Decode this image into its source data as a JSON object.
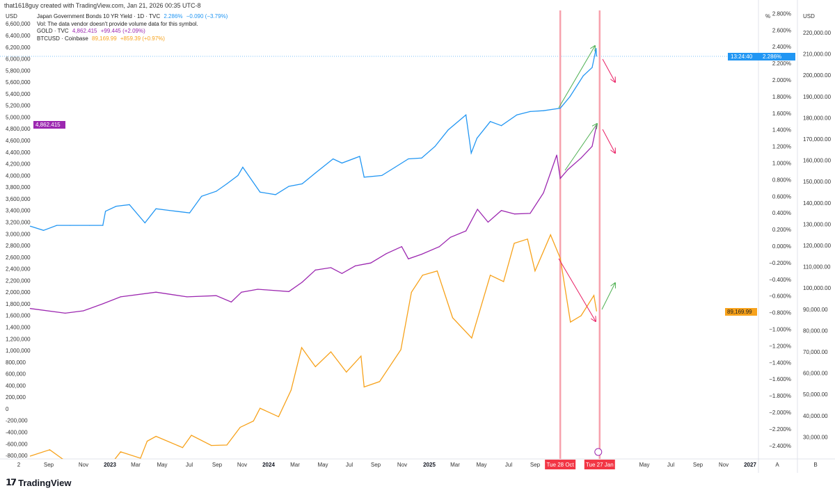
{
  "credit": "that1618guy created with TradingView.com, Jan 21, 2026 00:35 UTC-8",
  "legend": {
    "jgb": {
      "name": "Japan Government Bonds 10 YR Yield · 1D · TVC",
      "value": "2.286%",
      "change": "−0.090 (−3.79%)",
      "color": "#2196f3"
    },
    "vol": "Vol: The data vendor doesn't provide volume data for this symbol.",
    "gold": {
      "name": "GOLD · TVC",
      "value": "4,862.415",
      "change": "+99.445 (+2.09%)",
      "color": "#9c27b0"
    },
    "btc": {
      "name": "BTCUSD · Coinbase",
      "value": "89,169.99",
      "change": "+859.39 (+0.97%)",
      "color": "#f7a21b"
    }
  },
  "logo": "TradingView",
  "chart_data": {
    "type": "line",
    "left_axis": {
      "unit": "USD",
      "ticks": [
        "6,600,000",
        "6,400,000",
        "6,200,000",
        "6,000,000",
        "5,800,000",
        "5,600,000",
        "5,400,000",
        "5,200,000",
        "5,000,000",
        "4,800,000",
        "4,600,000",
        "4,400,000",
        "4,200,000",
        "4,000,000",
        "3,800,000",
        "3,600,000",
        "3,400,000",
        "3,200,000",
        "3,000,000",
        "2,800,000",
        "2,600,000",
        "2,400,000",
        "2,200,000",
        "2,000,000",
        "1,800,000",
        "1,600,000",
        "1,400,000",
        "1,200,000",
        "1,000,000",
        "800,000",
        "600,000",
        "400,000",
        "200,000",
        "0",
        "-200,000",
        "-400,000",
        "-600,000",
        "-800,000"
      ],
      "ylim": [
        -800000,
        6600000
      ]
    },
    "pct_axis": {
      "unit": "%",
      "ticks": [
        "2.800%",
        "2.600%",
        "2.400%",
        "2.200%",
        "2.000%",
        "1.800%",
        "1.600%",
        "1.400%",
        "1.200%",
        "1.000%",
        "0.800%",
        "0.600%",
        "0.400%",
        "0.200%",
        "0.000%",
        "−0.200%",
        "−0.400%",
        "−0.600%",
        "−0.800%",
        "−1.000%",
        "−1.200%",
        "−1.400%",
        "−1.600%",
        "−1.800%",
        "−2.000%",
        "−2.200%",
        "−2.400%"
      ],
      "ylim": [
        -2.4,
        2.8
      ]
    },
    "usd_axis": {
      "unit": "USD",
      "ticks": [
        "220,000.00",
        "210,000.00",
        "200,000.00",
        "190,000.00",
        "180,000.00",
        "170,000.00",
        "160,000.00",
        "150,000.00",
        "140,000.00",
        "130,000.00",
        "120,000.00",
        "110,000.00",
        "100,000.00",
        "90,000.00",
        "80,000.00",
        "70,000.00",
        "60,000.00",
        "50,000.00",
        "40,000.00",
        "30,000.00"
      ],
      "ylim": [
        30000,
        220000
      ]
    },
    "x_ticks": [
      "2",
      "Sep",
      "Nov",
      "2023",
      "Mar",
      "May",
      "Jul",
      "Sep",
      "Nov",
      "2024",
      "Mar",
      "May",
      "Jul",
      "Sep",
      "Nov",
      "2025",
      "Mar",
      "May",
      "Jul",
      "Sep",
      "May",
      "Jul",
      "Sep",
      "Nov",
      "2027"
    ],
    "x_markers": [
      "Tue 28 Oct",
      "Tue 27 Jan"
    ],
    "scale_buttons": [
      "A",
      "B"
    ],
    "price_labels": {
      "jgb": "2.286%",
      "jgb_timer": "13:24:40",
      "gold": "4,862.415",
      "btc": "89,169.99"
    },
    "series": [
      {
        "name": "Japan Government Bonds 10 YR Yield",
        "axis": "pct",
        "color": "#2196f3",
        "points": [
          [
            "2022-07-01",
            0.24
          ],
          [
            "2022-08-01",
            0.19
          ],
          [
            "2022-09-01",
            0.25
          ],
          [
            "2022-10-01",
            0.25
          ],
          [
            "2022-11-15",
            0.25
          ],
          [
            "2022-12-15",
            0.25
          ],
          [
            "2022-12-21",
            0.42
          ],
          [
            "2023-01-15",
            0.48
          ],
          [
            "2023-02-15",
            0.5
          ],
          [
            "2023-03-20",
            0.28
          ],
          [
            "2023-04-15",
            0.45
          ],
          [
            "2023-05-15",
            0.43
          ],
          [
            "2023-07-01",
            0.4
          ],
          [
            "2023-07-28",
            0.6
          ],
          [
            "2023-09-01",
            0.66
          ],
          [
            "2023-09-25",
            0.75
          ],
          [
            "2023-10-20",
            0.85
          ],
          [
            "2023-11-01",
            0.95
          ],
          [
            "2023-12-10",
            0.65
          ],
          [
            "2024-01-15",
            0.62
          ],
          [
            "2024-02-15",
            0.72
          ],
          [
            "2024-03-15",
            0.75
          ],
          [
            "2024-04-15",
            0.88
          ],
          [
            "2024-05-25",
            1.05
          ],
          [
            "2024-06-15",
            1.0
          ],
          [
            "2024-07-25",
            1.08
          ],
          [
            "2024-08-05",
            0.83
          ],
          [
            "2024-09-15",
            0.85
          ],
          [
            "2024-10-15",
            0.95
          ],
          [
            "2024-11-15",
            1.05
          ],
          [
            "2024-12-15",
            1.06
          ],
          [
            "2025-01-15",
            1.2
          ],
          [
            "2025-02-15",
            1.4
          ],
          [
            "2025-03-25",
            1.58
          ],
          [
            "2025-04-07",
            1.12
          ],
          [
            "2025-04-20",
            1.3
          ],
          [
            "2025-05-20",
            1.5
          ],
          [
            "2025-06-15",
            1.45
          ],
          [
            "2025-07-20",
            1.58
          ],
          [
            "2025-08-20",
            1.62
          ],
          [
            "2025-09-20",
            1.63
          ],
          [
            "2025-10-28",
            1.66
          ],
          [
            "2025-11-20",
            1.8
          ],
          [
            "2025-12-20",
            2.05
          ],
          [
            "2026-01-10",
            2.15
          ],
          [
            "2026-01-19",
            2.38
          ],
          [
            "2026-01-20",
            2.286
          ]
        ]
      },
      {
        "name": "GOLD",
        "axis": "left",
        "color": "#9c27b0",
        "points": [
          [
            "2022-07-01",
            1720000
          ],
          [
            "2022-09-20",
            1640000
          ],
          [
            "2022-11-01",
            1680000
          ],
          [
            "2022-12-15",
            1800000
          ],
          [
            "2023-01-25",
            1920000
          ],
          [
            "2023-04-15",
            2000000
          ],
          [
            "2023-06-25",
            1920000
          ],
          [
            "2023-09-01",
            1940000
          ],
          [
            "2023-10-05",
            1830000
          ],
          [
            "2023-10-28",
            2000000
          ],
          [
            "2023-12-05",
            2050000
          ],
          [
            "2024-02-15",
            2010000
          ],
          [
            "2024-03-15",
            2170000
          ],
          [
            "2024-04-15",
            2380000
          ],
          [
            "2024-05-20",
            2420000
          ],
          [
            "2024-06-15",
            2320000
          ],
          [
            "2024-07-15",
            2450000
          ],
          [
            "2024-08-20",
            2500000
          ],
          [
            "2024-09-25",
            2660000
          ],
          [
            "2024-10-30",
            2780000
          ],
          [
            "2024-11-15",
            2570000
          ],
          [
            "2024-12-15",
            2650000
          ],
          [
            "2025-01-25",
            2780000
          ],
          [
            "2025-02-20",
            2940000
          ],
          [
            "2025-03-25",
            3050000
          ],
          [
            "2025-04-21",
            3420000
          ],
          [
            "2025-05-15",
            3200000
          ],
          [
            "2025-06-15",
            3400000
          ],
          [
            "2025-07-15",
            3340000
          ],
          [
            "2025-08-20",
            3350000
          ],
          [
            "2025-09-20",
            3700000
          ],
          [
            "2025-10-20",
            4350000
          ],
          [
            "2025-10-28",
            3950000
          ],
          [
            "2025-11-15",
            4100000
          ],
          [
            "2025-12-15",
            4300000
          ],
          [
            "2026-01-10",
            4500000
          ],
          [
            "2026-01-20",
            4862415
          ]
        ]
      },
      {
        "name": "BTCUSD",
        "axis": "usd",
        "color": "#f7a21b",
        "points": [
          [
            "2022-07-01",
            21000
          ],
          [
            "2022-08-15",
            24000
          ],
          [
            "2022-09-15",
            19500
          ],
          [
            "2022-11-15",
            16500
          ],
          [
            "2023-01-01",
            16600
          ],
          [
            "2023-01-25",
            23000
          ],
          [
            "2023-03-10",
            20000
          ],
          [
            "2023-03-25",
            28000
          ],
          [
            "2023-04-15",
            30300
          ],
          [
            "2023-06-15",
            25000
          ],
          [
            "2023-07-05",
            30800
          ],
          [
            "2023-08-20",
            26000
          ],
          [
            "2023-09-25",
            26200
          ],
          [
            "2023-10-25",
            34500
          ],
          [
            "2023-11-25",
            37500
          ],
          [
            "2023-12-10",
            43500
          ],
          [
            "2024-01-22",
            39500
          ],
          [
            "2024-02-20",
            52000
          ],
          [
            "2024-03-14",
            72000
          ],
          [
            "2024-04-15",
            63000
          ],
          [
            "2024-05-20",
            70000
          ],
          [
            "2024-06-25",
            60500
          ],
          [
            "2024-07-28",
            68000
          ],
          [
            "2024-08-05",
            53500
          ],
          [
            "2024-09-10",
            56000
          ],
          [
            "2024-10-28",
            71000
          ],
          [
            "2024-11-22",
            98000
          ],
          [
            "2024-12-17",
            106000
          ],
          [
            "2025-01-20",
            108000
          ],
          [
            "2025-02-25",
            86000
          ],
          [
            "2025-04-08",
            76500
          ],
          [
            "2025-05-20",
            106000
          ],
          [
            "2025-06-20",
            103000
          ],
          [
            "2025-07-14",
            121000
          ],
          [
            "2025-08-14",
            123000
          ],
          [
            "2025-09-01",
            108000
          ],
          [
            "2025-10-06",
            125000
          ],
          [
            "2025-10-28",
            114000
          ],
          [
            "2025-11-21",
            84000
          ],
          [
            "2025-12-15",
            87000
          ],
          [
            "2026-01-14",
            96500
          ],
          [
            "2026-01-20",
            89169.99
          ]
        ]
      }
    ]
  }
}
